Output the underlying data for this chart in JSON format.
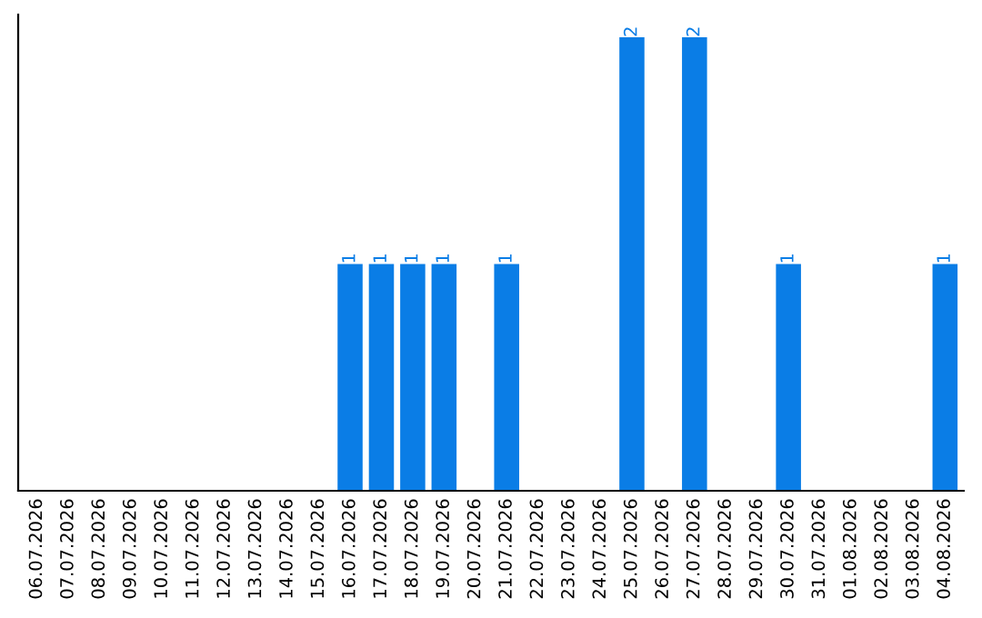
{
  "chart_data": {
    "type": "bar",
    "categories": [
      "06.07.2026",
      "07.07.2026",
      "08.07.2026",
      "09.07.2026",
      "10.07.2026",
      "11.07.2026",
      "12.07.2026",
      "13.07.2026",
      "14.07.2026",
      "15.07.2026",
      "16.07.2026",
      "17.07.2026",
      "18.07.2026",
      "19.07.2026",
      "20.07.2026",
      "21.07.2026",
      "22.07.2026",
      "23.07.2026",
      "24.07.2026",
      "25.07.2026",
      "26.07.2026",
      "27.07.2026",
      "28.07.2026",
      "29.07.2026",
      "30.07.2026",
      "31.07.2026",
      "01.08.2026",
      "02.08.2026",
      "03.08.2026",
      "04.08.2026"
    ],
    "values": [
      0,
      0,
      0,
      0,
      0,
      0,
      0,
      0,
      0,
      0,
      1,
      1,
      1,
      1,
      0,
      1,
      0,
      0,
      0,
      2,
      0,
      2,
      0,
      0,
      1,
      0,
      0,
      0,
      0,
      1
    ],
    "value_labels": [
      null,
      null,
      null,
      null,
      null,
      null,
      null,
      null,
      null,
      null,
      "1",
      "1",
      "1",
      "1",
      null,
      "1",
      null,
      null,
      null,
      "2",
      null,
      "2",
      null,
      null,
      "1",
      null,
      null,
      null,
      null,
      "1"
    ],
    "color": "#0a7de6",
    "ylim": [
      0,
      2.1
    ],
    "tick_labels": "x",
    "grid": false,
    "legend": false
  }
}
